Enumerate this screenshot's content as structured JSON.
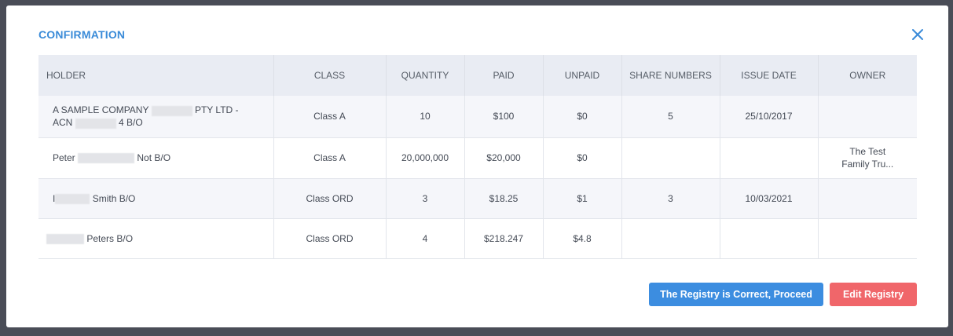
{
  "modal": {
    "title": "CONFIRMATION"
  },
  "table": {
    "headers": [
      "HOLDER",
      "CLASS",
      "QUANTITY",
      "PAID",
      "UNPAID",
      "SHARE NUMBERS",
      "ISSUE DATE",
      "OWNER"
    ],
    "rows": [
      {
        "holder_pre": "A SAMPLE COMPANY",
        "holder_mid": "PTY LTD -",
        "holder_line2_pre": "ACN",
        "holder_line2_post": "4 B/O",
        "class": "Class A",
        "quantity": "10",
        "paid": "$100",
        "unpaid": "$0",
        "share_numbers": "5",
        "issue_date": "25/10/2017",
        "owner": ""
      },
      {
        "holder_pre": "Peter",
        "holder_post": "Not B/O",
        "class": "Class A",
        "quantity": "20,000,000",
        "paid": "$20,000",
        "unpaid": "$0",
        "share_numbers": "",
        "issue_date": "",
        "owner_line1": "The Test",
        "owner_line2": "Family Tru..."
      },
      {
        "holder_pre": "I",
        "holder_post": "Smith B/O",
        "class": "Class ORD",
        "quantity": "3",
        "paid": "$18.25",
        "unpaid": "$1",
        "share_numbers": "3",
        "issue_date": "10/03/2021",
        "owner": ""
      },
      {
        "holder_post": "Peters B/O",
        "class": "Class ORD",
        "quantity": "4",
        "paid": "$218.247",
        "unpaid": "$4.8",
        "share_numbers": "",
        "issue_date": "",
        "owner": ""
      }
    ]
  },
  "actions": {
    "proceed_label": "The Registry is Correct, Proceed",
    "edit_label": "Edit Registry"
  },
  "colors": {
    "accent": "#3a8bd8",
    "proceed": "#3c8de0",
    "edit": "#f0666a",
    "backdrop": "#4a4d57"
  },
  "icons": {
    "close": "close-icon"
  }
}
